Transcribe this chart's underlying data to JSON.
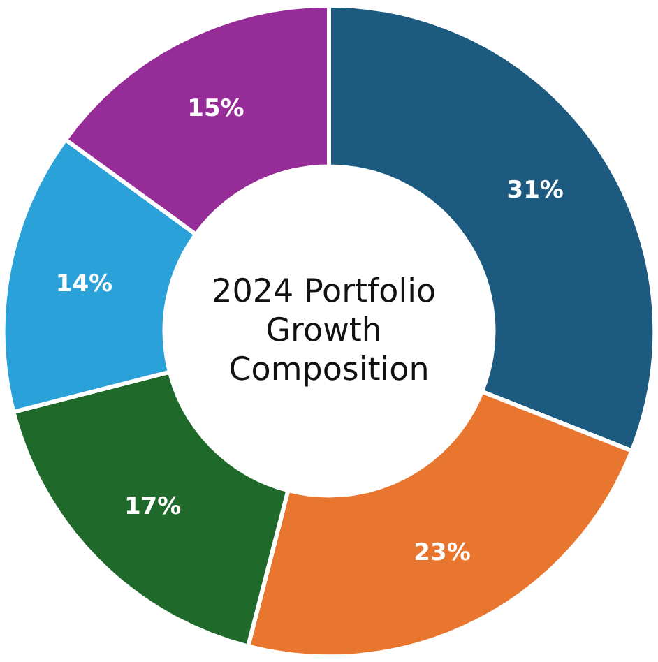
{
  "chart_data": {
    "type": "donut",
    "title": "2024 Portfolio Growth Composition",
    "categories": [
      null,
      null,
      null,
      null,
      null
    ],
    "values": [
      31,
      23,
      17,
      14,
      15
    ],
    "colors": [
      "#1d5a80",
      "#e9762f",
      "#1f6a2b",
      "#2aa1d9",
      "#962c98"
    ],
    "value_labels": [
      "31%",
      "23%",
      "17%",
      "14%",
      "15%"
    ]
  }
}
